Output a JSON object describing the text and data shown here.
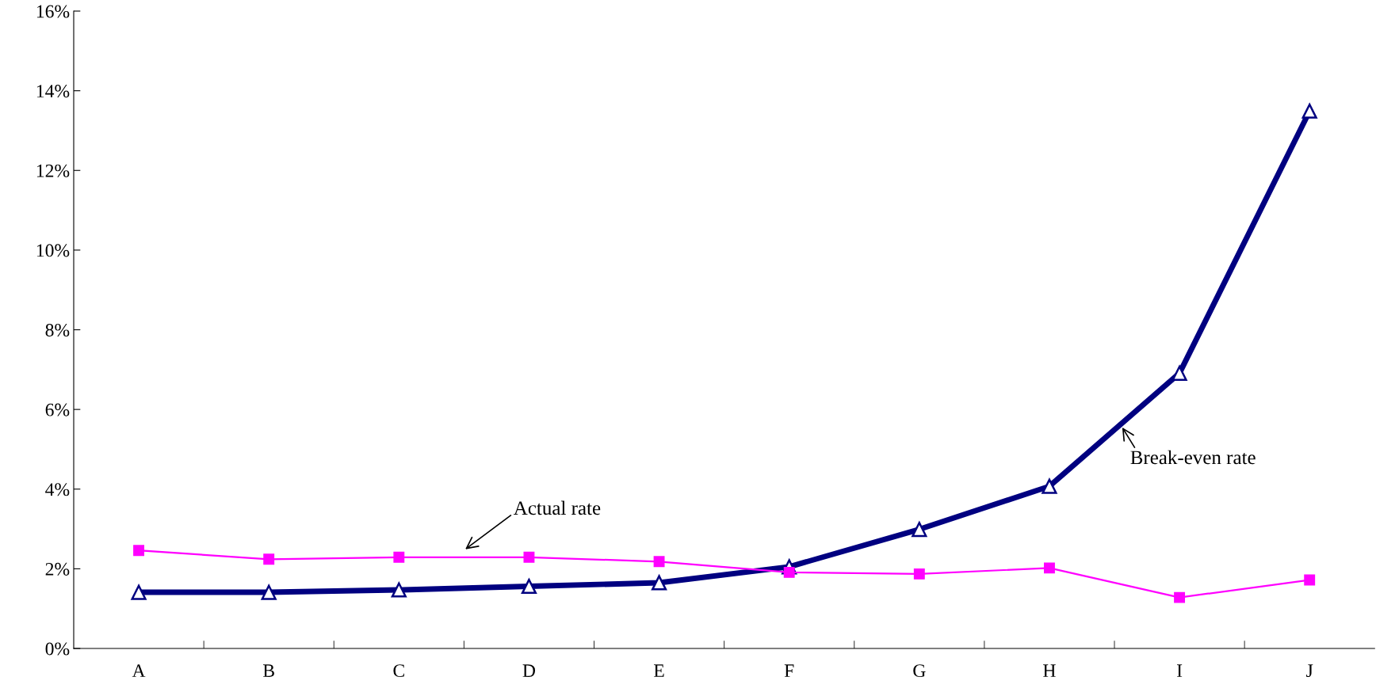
{
  "chart_data": {
    "type": "line",
    "categories": [
      "A",
      "B",
      "C",
      "D",
      "E",
      "F",
      "G",
      "H",
      "I",
      "J"
    ],
    "series": [
      {
        "name": "Actual rate",
        "color": "#ff00ff",
        "marker": "square",
        "values": [
          2.46,
          2.24,
          2.29,
          2.29,
          2.18,
          1.91,
          1.87,
          2.02,
          1.28,
          1.72
        ]
      },
      {
        "name": "Break-even rate",
        "color": "#000080",
        "marker": "triangle",
        "values": [
          1.41,
          1.41,
          1.47,
          1.56,
          1.65,
          2.05,
          2.99,
          4.07,
          6.91,
          13.49
        ]
      }
    ],
    "ylim": [
      0,
      16
    ],
    "yticks": [
      {
        "value": 0,
        "label": "0%"
      },
      {
        "value": 2,
        "label": "2%"
      },
      {
        "value": 4,
        "label": "4%"
      },
      {
        "value": 6,
        "label": "6%"
      },
      {
        "value": 8,
        "label": "8%"
      },
      {
        "value": 10,
        "label": "10%"
      },
      {
        "value": 12,
        "label": "12%"
      },
      {
        "value": 14,
        "label": "14%"
      },
      {
        "value": 16,
        "label": "16%"
      }
    ],
    "grid": false,
    "legend": false
  }
}
